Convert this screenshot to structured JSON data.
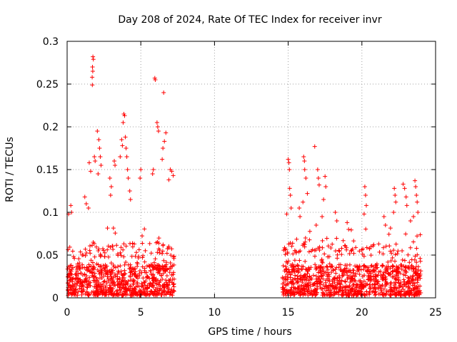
{
  "chart_data": {
    "type": "scatter",
    "title": "Day 208 of 2024, Rate Of TEC Index for receiver invr",
    "xlabel": "GPS time / hours",
    "ylabel": "ROTI / TECUs",
    "xlim": [
      0,
      25
    ],
    "ylim": [
      0,
      0.3
    ],
    "x_ticks": [
      0,
      5,
      10,
      15,
      20,
      25
    ],
    "x_tick_labels": [
      "0",
      "5",
      "10",
      "15",
      "20",
      "25"
    ],
    "y_ticks": [
      0,
      0.05,
      0.1,
      0.15,
      0.2,
      0.25,
      0.3
    ],
    "y_tick_labels": [
      "0",
      "0.05",
      "0.1",
      "0.15",
      "0.2",
      "0.25",
      "0.3"
    ],
    "grid": true,
    "marker": "plus",
    "marker_color": "#ff0000",
    "series": [
      {
        "name": "ROTI",
        "coverage_hours": [
          [
            0.0,
            7.3
          ],
          [
            14.6,
            24.0
          ]
        ],
        "typical_range": [
          0.0,
          0.06
        ],
        "points": [
          {
            "x": 1.75,
            "y": 0.282
          },
          {
            "x": 1.78,
            "y": 0.279
          },
          {
            "x": 1.72,
            "y": 0.27
          },
          {
            "x": 1.74,
            "y": 0.265
          },
          {
            "x": 1.7,
            "y": 0.258
          },
          {
            "x": 1.71,
            "y": 0.249
          },
          {
            "x": 5.95,
            "y": 0.257
          },
          {
            "x": 5.98,
            "y": 0.255
          },
          {
            "x": 6.55,
            "y": 0.24
          },
          {
            "x": 3.85,
            "y": 0.215
          },
          {
            "x": 3.9,
            "y": 0.213
          },
          {
            "x": 3.8,
            "y": 0.205
          },
          {
            "x": 3.95,
            "y": 0.188
          },
          {
            "x": 6.1,
            "y": 0.205
          },
          {
            "x": 6.15,
            "y": 0.2
          },
          {
            "x": 6.2,
            "y": 0.195
          },
          {
            "x": 6.7,
            "y": 0.193
          },
          {
            "x": 6.6,
            "y": 0.183
          },
          {
            "x": 6.5,
            "y": 0.175
          },
          {
            "x": 6.45,
            "y": 0.162
          },
          {
            "x": 2.05,
            "y": 0.195
          },
          {
            "x": 2.15,
            "y": 0.185
          },
          {
            "x": 2.2,
            "y": 0.175
          },
          {
            "x": 2.25,
            "y": 0.165
          },
          {
            "x": 2.3,
            "y": 0.155
          },
          {
            "x": 2.1,
            "y": 0.145
          },
          {
            "x": 1.85,
            "y": 0.165
          },
          {
            "x": 1.9,
            "y": 0.16
          },
          {
            "x": 1.5,
            "y": 0.158
          },
          {
            "x": 1.6,
            "y": 0.148
          },
          {
            "x": 3.2,
            "y": 0.16
          },
          {
            "x": 3.25,
            "y": 0.155
          },
          {
            "x": 3.7,
            "y": 0.185
          },
          {
            "x": 3.75,
            "y": 0.178
          },
          {
            "x": 4.0,
            "y": 0.175
          },
          {
            "x": 4.05,
            "y": 0.165
          },
          {
            "x": 3.6,
            "y": 0.165
          },
          {
            "x": 4.1,
            "y": 0.15
          },
          {
            "x": 4.15,
            "y": 0.14
          },
          {
            "x": 5.85,
            "y": 0.15
          },
          {
            "x": 5.8,
            "y": 0.145
          },
          {
            "x": 5.0,
            "y": 0.15
          },
          {
            "x": 4.95,
            "y": 0.14
          },
          {
            "x": 7.0,
            "y": 0.15
          },
          {
            "x": 7.1,
            "y": 0.148
          },
          {
            "x": 7.2,
            "y": 0.143
          },
          {
            "x": 6.9,
            "y": 0.138
          },
          {
            "x": 2.9,
            "y": 0.14
          },
          {
            "x": 3.0,
            "y": 0.13
          },
          {
            "x": 2.95,
            "y": 0.12
          },
          {
            "x": 4.25,
            "y": 0.125
          },
          {
            "x": 4.3,
            "y": 0.115
          },
          {
            "x": 0.25,
            "y": 0.108
          },
          {
            "x": 0.3,
            "y": 0.1
          },
          {
            "x": 0.1,
            "y": 0.098
          },
          {
            "x": 1.2,
            "y": 0.118
          },
          {
            "x": 1.3,
            "y": 0.11
          },
          {
            "x": 1.45,
            "y": 0.105
          },
          {
            "x": 15.0,
            "y": 0.162
          },
          {
            "x": 15.05,
            "y": 0.158
          },
          {
            "x": 15.08,
            "y": 0.15
          },
          {
            "x": 15.1,
            "y": 0.128
          },
          {
            "x": 15.15,
            "y": 0.12
          },
          {
            "x": 15.2,
            "y": 0.105
          },
          {
            "x": 14.9,
            "y": 0.098
          },
          {
            "x": 16.05,
            "y": 0.165
          },
          {
            "x": 16.1,
            "y": 0.16
          },
          {
            "x": 16.12,
            "y": 0.15
          },
          {
            "x": 16.2,
            "y": 0.14
          },
          {
            "x": 16.3,
            "y": 0.122
          },
          {
            "x": 16.0,
            "y": 0.112
          },
          {
            "x": 15.75,
            "y": 0.105
          },
          {
            "x": 15.8,
            "y": 0.095
          },
          {
            "x": 16.8,
            "y": 0.177
          },
          {
            "x": 17.0,
            "y": 0.15
          },
          {
            "x": 17.05,
            "y": 0.14
          },
          {
            "x": 17.1,
            "y": 0.132
          },
          {
            "x": 17.5,
            "y": 0.142
          },
          {
            "x": 17.55,
            "y": 0.13
          },
          {
            "x": 17.4,
            "y": 0.115
          },
          {
            "x": 17.3,
            "y": 0.095
          },
          {
            "x": 16.9,
            "y": 0.085
          },
          {
            "x": 18.2,
            "y": 0.1
          },
          {
            "x": 18.3,
            "y": 0.09
          },
          {
            "x": 20.2,
            "y": 0.13
          },
          {
            "x": 20.25,
            "y": 0.12
          },
          {
            "x": 20.3,
            "y": 0.108
          },
          {
            "x": 20.15,
            "y": 0.098
          },
          {
            "x": 22.2,
            "y": 0.128
          },
          {
            "x": 22.25,
            "y": 0.12
          },
          {
            "x": 22.3,
            "y": 0.112
          },
          {
            "x": 22.15,
            "y": 0.1
          },
          {
            "x": 22.8,
            "y": 0.133
          },
          {
            "x": 22.9,
            "y": 0.128
          },
          {
            "x": 23.0,
            "y": 0.118
          },
          {
            "x": 23.05,
            "y": 0.108
          },
          {
            "x": 23.6,
            "y": 0.137
          },
          {
            "x": 23.65,
            "y": 0.13
          },
          {
            "x": 23.7,
            "y": 0.12
          },
          {
            "x": 23.75,
            "y": 0.112
          },
          {
            "x": 23.8,
            "y": 0.1
          },
          {
            "x": 23.5,
            "y": 0.095
          },
          {
            "x": 23.3,
            "y": 0.09
          },
          {
            "x": 21.5,
            "y": 0.095
          },
          {
            "x": 21.6,
            "y": 0.085
          },
          {
            "x": 19.0,
            "y": 0.088
          },
          {
            "x": 19.1,
            "y": 0.08
          }
        ]
      }
    ]
  }
}
